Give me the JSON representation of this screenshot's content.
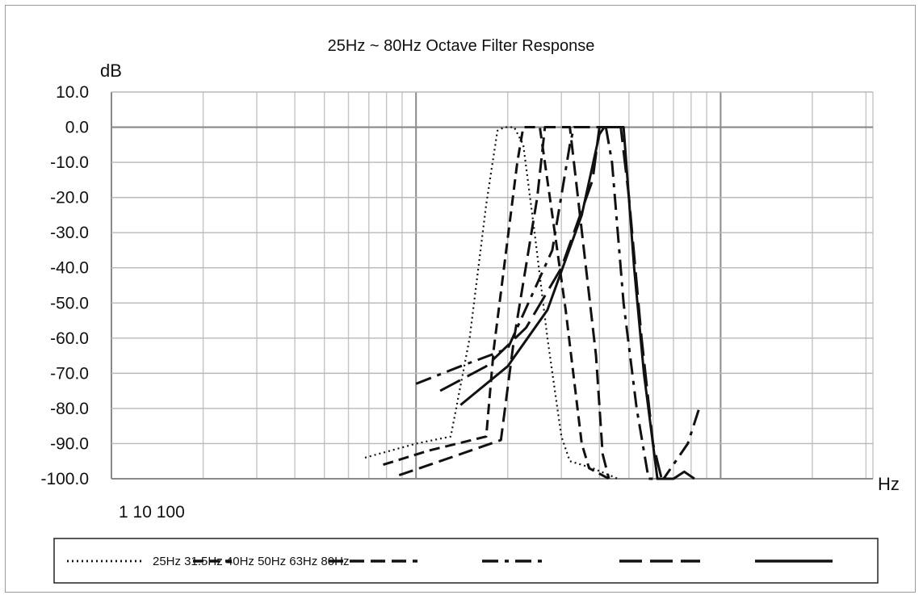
{
  "chart_data": {
    "type": "line",
    "title": "25Hz ~ 80Hz Octave Filter Response",
    "ylabel": "dB",
    "xlabel": "Hz",
    "x_tick_text": "1 10 100",
    "x_scale": "log",
    "y_ticks": [
      "10.0",
      "0.0",
      "-10.0",
      "-20.0",
      "-30.0",
      "-40.0",
      "-50.0",
      "-60.0",
      "-70.0",
      "-80.0",
      "-90.0",
      "-100.0"
    ],
    "ylim": [
      -100,
      10
    ],
    "grid": true,
    "legend_position": "bottom",
    "legend_text": "25Hz 31.5Hz 40Hz 50Hz 63Hz 80Hz",
    "series": [
      {
        "name": "25Hz",
        "style": "dotted",
        "points": [
          [
            6.8,
            -94
          ],
          [
            10,
            -90
          ],
          [
            13,
            -88
          ],
          [
            15,
            -60
          ],
          [
            17,
            -22
          ],
          [
            18.5,
            -1
          ],
          [
            19.5,
            0
          ],
          [
            21,
            0
          ],
          [
            22.5,
            -5
          ],
          [
            24.5,
            -30
          ],
          [
            27,
            -60
          ],
          [
            30,
            -88
          ],
          [
            32,
            -95
          ],
          [
            38,
            -97
          ],
          [
            46,
            -100
          ]
        ]
      },
      {
        "name": "31.5Hz",
        "style": "dash",
        "points": [
          [
            7.8,
            -96
          ],
          [
            11,
            -92
          ],
          [
            17,
            -88
          ],
          [
            18,
            -63
          ],
          [
            21.5,
            -10
          ],
          [
            22.5,
            0
          ],
          [
            25.5,
            0
          ],
          [
            27.5,
            -20
          ],
          [
            31,
            -52
          ],
          [
            35,
            -90
          ],
          [
            37,
            -97
          ],
          [
            43,
            -100
          ]
        ]
      },
      {
        "name": "40Hz",
        "style": "medium-dash",
        "points": [
          [
            8.8,
            -99
          ],
          [
            12,
            -95
          ],
          [
            19,
            -89
          ],
          [
            21,
            -60
          ],
          [
            25,
            -20
          ],
          [
            26.5,
            0
          ],
          [
            32,
            0
          ],
          [
            34,
            -20
          ],
          [
            39,
            -65
          ],
          [
            41,
            -93
          ],
          [
            43,
            -100
          ]
        ]
      },
      {
        "name": "50Hz",
        "style": "dash-dot",
        "points": [
          [
            10,
            -73
          ],
          [
            14,
            -68
          ],
          [
            20,
            -63
          ],
          [
            28,
            -35
          ],
          [
            32,
            -5
          ],
          [
            33,
            0
          ],
          [
            42,
            0
          ],
          [
            44,
            -10
          ],
          [
            48,
            -50
          ],
          [
            53,
            -80
          ],
          [
            58,
            -100
          ],
          [
            65,
            -100
          ],
          [
            78,
            -90
          ],
          [
            85,
            -80
          ]
        ]
      },
      {
        "name": "63Hz",
        "style": "long-dash",
        "points": [
          [
            12,
            -75
          ],
          [
            17,
            -68
          ],
          [
            23,
            -57
          ],
          [
            30,
            -40
          ],
          [
            38,
            -15
          ],
          [
            40,
            0
          ],
          [
            47,
            0
          ],
          [
            50,
            -20
          ],
          [
            55,
            -60
          ],
          [
            60,
            -90
          ],
          [
            64,
            -100
          ]
        ]
      },
      {
        "name": "80Hz",
        "style": "solid",
        "points": [
          [
            14,
            -79
          ],
          [
            20,
            -68
          ],
          [
            27,
            -52
          ],
          [
            35,
            -25
          ],
          [
            40,
            -2
          ],
          [
            41.5,
            0
          ],
          [
            48,
            0
          ],
          [
            52,
            -40
          ],
          [
            56,
            -70
          ],
          [
            62,
            -100
          ],
          [
            70,
            -100
          ],
          [
            76,
            -98
          ],
          [
            82,
            -100
          ]
        ]
      }
    ]
  }
}
